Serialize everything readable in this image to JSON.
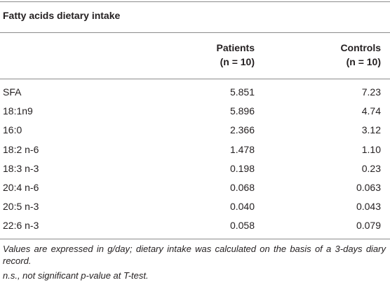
{
  "header": {
    "title": "Fatty acids dietary intake"
  },
  "table": {
    "columns": [
      {
        "name": "Patients",
        "sub": "(n = 10)"
      },
      {
        "name": "Controls",
        "sub": "(n = 10)"
      }
    ],
    "rows": [
      [
        "SFA",
        "5.851",
        "7.23"
      ],
      [
        "18:1n9",
        "5.896",
        "4.74"
      ],
      [
        "16:0",
        "2.366",
        "3.12"
      ],
      [
        "18:2 n-6",
        "1.478",
        "1.10"
      ],
      [
        "18:3 n-3",
        "0.198",
        "0.23"
      ],
      [
        "20:4 n-6",
        "0.068",
        "0.063"
      ],
      [
        "20:5 n-3",
        "0.040",
        "0.043"
      ],
      [
        "22:6 n-3",
        "0.058",
        "0.079"
      ]
    ]
  },
  "footnotes": [
    "Values are expressed in g/day; dietary intake was calculated on the basis of a 3-days diary record.",
    "n.s., not significant p-value at T-test."
  ]
}
